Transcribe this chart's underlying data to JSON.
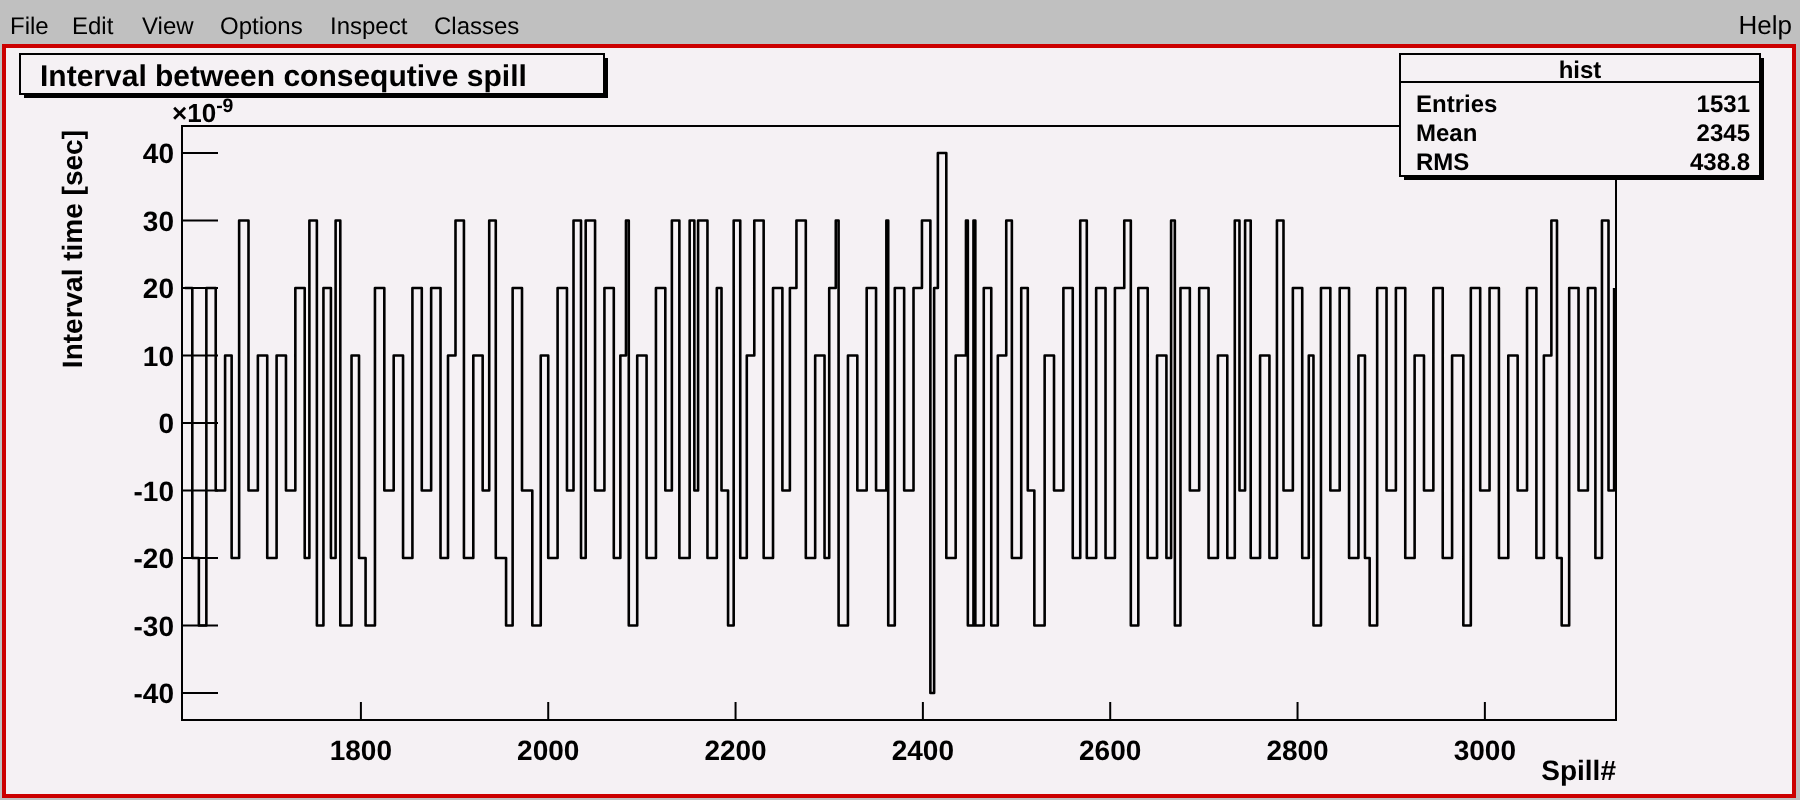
{
  "chart_data": {
    "type": "step",
    "title": "Interval between consequtive spill",
    "xlabel": "Spill#",
    "ylabel": "Interval time [sec]",
    "annotations": [
      "File",
      "Edit",
      "View",
      "Options",
      "Inspect",
      "Classes",
      "Help",
      "hist",
      "Entries",
      "1531",
      "Mean",
      "2345",
      "RMS",
      "438.8",
      "×10$^{-9}$"
    ],
    "xlim": [
      1609,
      3140
    ],
    "xticks": [
      1800,
      2000,
      2200,
      2400,
      2600,
      2800,
      3000
    ],
    "ylim": [
      -44,
      44
    ],
    "yticks": [
      -40,
      -30,
      -20,
      -10,
      0,
      10,
      20,
      30,
      40
    ],
    "grid": false,
    "series": [
      {
        "color": "#000000",
        "x": [
          1612,
          1620,
          1627,
          1635,
          1645,
          1655,
          1662,
          1670,
          1680,
          1690,
          1700,
          1710,
          1720,
          1730,
          1740,
          1745,
          1753,
          1760,
          1768,
          1773,
          1778,
          1790,
          1798,
          1805,
          1815,
          1825,
          1835,
          1845,
          1855,
          1865,
          1875,
          1885,
          1893,
          1901,
          1910,
          1920,
          1930,
          1937,
          1944,
          1955,
          1962,
          1972,
          1983,
          1992,
          2000,
          2010,
          2020,
          2027,
          2035,
          2040,
          2050,
          2060,
          2070,
          2077,
          2083,
          2086,
          2095,
          2105,
          2115,
          2125,
          2132,
          2140,
          2151,
          2156,
          2160,
          2170,
          2180,
          2185,
          2192,
          2198,
          2205,
          2212,
          2220,
          2230,
          2240,
          2250,
          2258,
          2265,
          2275,
          2285,
          2295,
          2300,
          2307,
          2310,
          2320,
          2330,
          2340,
          2350,
          2361,
          2363,
          2370,
          2380,
          2390,
          2399,
          2408,
          2412,
          2416,
          2425,
          2435,
          2446,
          2448,
          2454,
          2456,
          2465,
          2473,
          2480,
          2489,
          2495,
          2505,
          2512,
          2519,
          2530,
          2540,
          2550,
          2560,
          2568,
          2575,
          2585,
          2595,
          2605,
          2615,
          2622,
          2630,
          2640,
          2650,
          2660,
          2665,
          2669,
          2675,
          2685,
          2695,
          2705,
          2715,
          2725,
          2733,
          2738,
          2744,
          2750,
          2760,
          2770,
          2778,
          2785,
          2795,
          2805,
          2812,
          2817,
          2825,
          2835,
          2845,
          2855,
          2865,
          2872,
          2877,
          2885,
          2895,
          2905,
          2915,
          2925,
          2935,
          2945,
          2955,
          2965,
          2977,
          2985,
          2995,
          3005,
          3015,
          3025,
          3035,
          3045,
          3055,
          3063,
          3071,
          3077,
          3082,
          3090,
          3100,
          3110,
          3118,
          3125,
          3132,
          3138
        ],
        "values": [
          20,
          -20,
          -30,
          20,
          -10,
          10,
          -20,
          30,
          -10,
          10,
          -20,
          10,
          -10,
          20,
          -20,
          30,
          -30,
          20,
          -20,
          30,
          -30,
          10,
          -20,
          -30,
          20,
          -10,
          10,
          -20,
          20,
          -10,
          20,
          -20,
          10,
          30,
          -20,
          10,
          -10,
          30,
          -20,
          -30,
          20,
          -10,
          -30,
          10,
          -20,
          20,
          -10,
          30,
          -20,
          30,
          -10,
          20,
          -20,
          10,
          30,
          -30,
          10,
          -20,
          20,
          -10,
          30,
          -20,
          30,
          -10,
          30,
          -20,
          20,
          -10,
          -30,
          30,
          -20,
          10,
          30,
          -20,
          20,
          -10,
          20,
          30,
          -20,
          10,
          -20,
          20,
          30,
          -30,
          10,
          -10,
          20,
          -10,
          30,
          -30,
          20,
          -10,
          20,
          30,
          -40,
          20,
          40,
          -20,
          10,
          30,
          -30,
          30,
          -30,
          20,
          -30,
          10,
          30,
          -20,
          20,
          -10,
          -30,
          10,
          -10,
          20,
          -20,
          30,
          -20,
          20,
          -20,
          20,
          30,
          -30,
          20,
          -20,
          10,
          -20,
          30,
          -30,
          20,
          -10,
          20,
          -20,
          10,
          -20,
          30,
          -10,
          30,
          -20,
          10,
          -20,
          30,
          -10,
          20,
          -20,
          10,
          -30,
          20,
          -10,
          20,
          -20,
          10,
          -20,
          -30,
          20,
          -10,
          20,
          -20,
          10,
          -10,
          20,
          -20,
          10,
          -30,
          20,
          -10,
          20,
          -20,
          10,
          -10,
          20,
          -20,
          10,
          30,
          -20,
          -30,
          20,
          -10,
          20,
          -20,
          30,
          -10,
          20
        ]
      }
    ]
  }
}
